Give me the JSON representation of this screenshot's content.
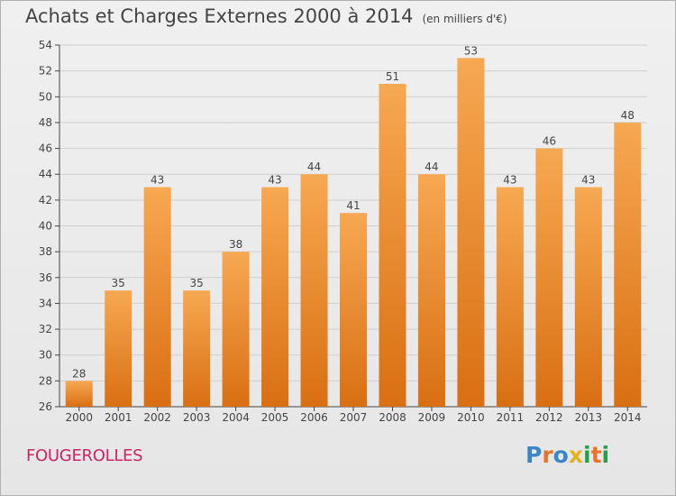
{
  "header": {
    "title": "Achats et Charges Externes 2000 à 2014",
    "subtitle": "(en milliers d'€)"
  },
  "footer": {
    "place": "FOUGEROLLES",
    "logo": "Proxiti"
  },
  "colors": {
    "bar_top": "#f7a852",
    "bar_bottom": "#d96f12",
    "axis": "#444444",
    "grid": "#cfcfcf",
    "label": "#444444",
    "place": "#cc2266"
  },
  "chart_data": {
    "type": "bar",
    "categories": [
      "2000",
      "2001",
      "2002",
      "2003",
      "2004",
      "2005",
      "2006",
      "2007",
      "2008",
      "2009",
      "2010",
      "2011",
      "2012",
      "2013",
      "2014"
    ],
    "values": [
      28,
      35,
      43,
      35,
      38,
      43,
      44,
      41,
      51,
      44,
      53,
      43,
      46,
      43,
      48
    ],
    "data_labels": [
      "28",
      "35",
      "43",
      "35",
      "38",
      "43",
      "44",
      "41",
      "51",
      "44",
      "53",
      "43",
      "46",
      "43",
      "48"
    ],
    "ylim": [
      26,
      54
    ],
    "yticks": [
      26,
      28,
      30,
      32,
      34,
      36,
      38,
      40,
      42,
      44,
      46,
      48,
      50,
      52,
      54
    ],
    "grid": true,
    "legend": "none"
  }
}
